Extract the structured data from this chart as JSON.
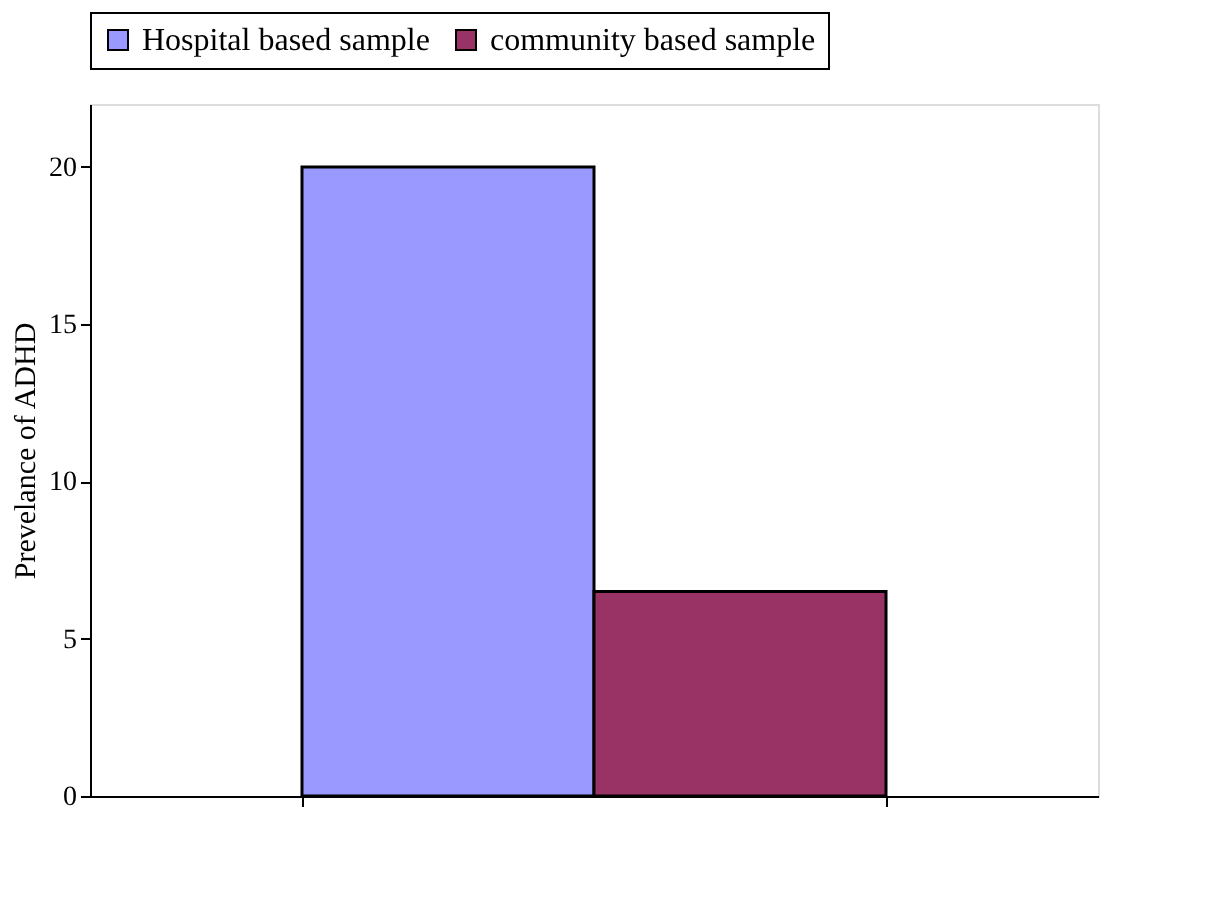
{
  "chart_data": {
    "type": "bar",
    "ylabel": "Prevelance of ADHD",
    "categories": [
      null
    ],
    "series": [
      {
        "name": "Hospital based sample",
        "color": "#9999ff",
        "values": [
          20
        ]
      },
      {
        "name": "community based sample",
        "color": "#993366",
        "values": [
          6.5
        ]
      }
    ],
    "ylim": [
      0,
      22
    ],
    "yticks": [
      0,
      5,
      10,
      15,
      20
    ],
    "grid": false,
    "legend": "top",
    "tick_labels": "y"
  }
}
